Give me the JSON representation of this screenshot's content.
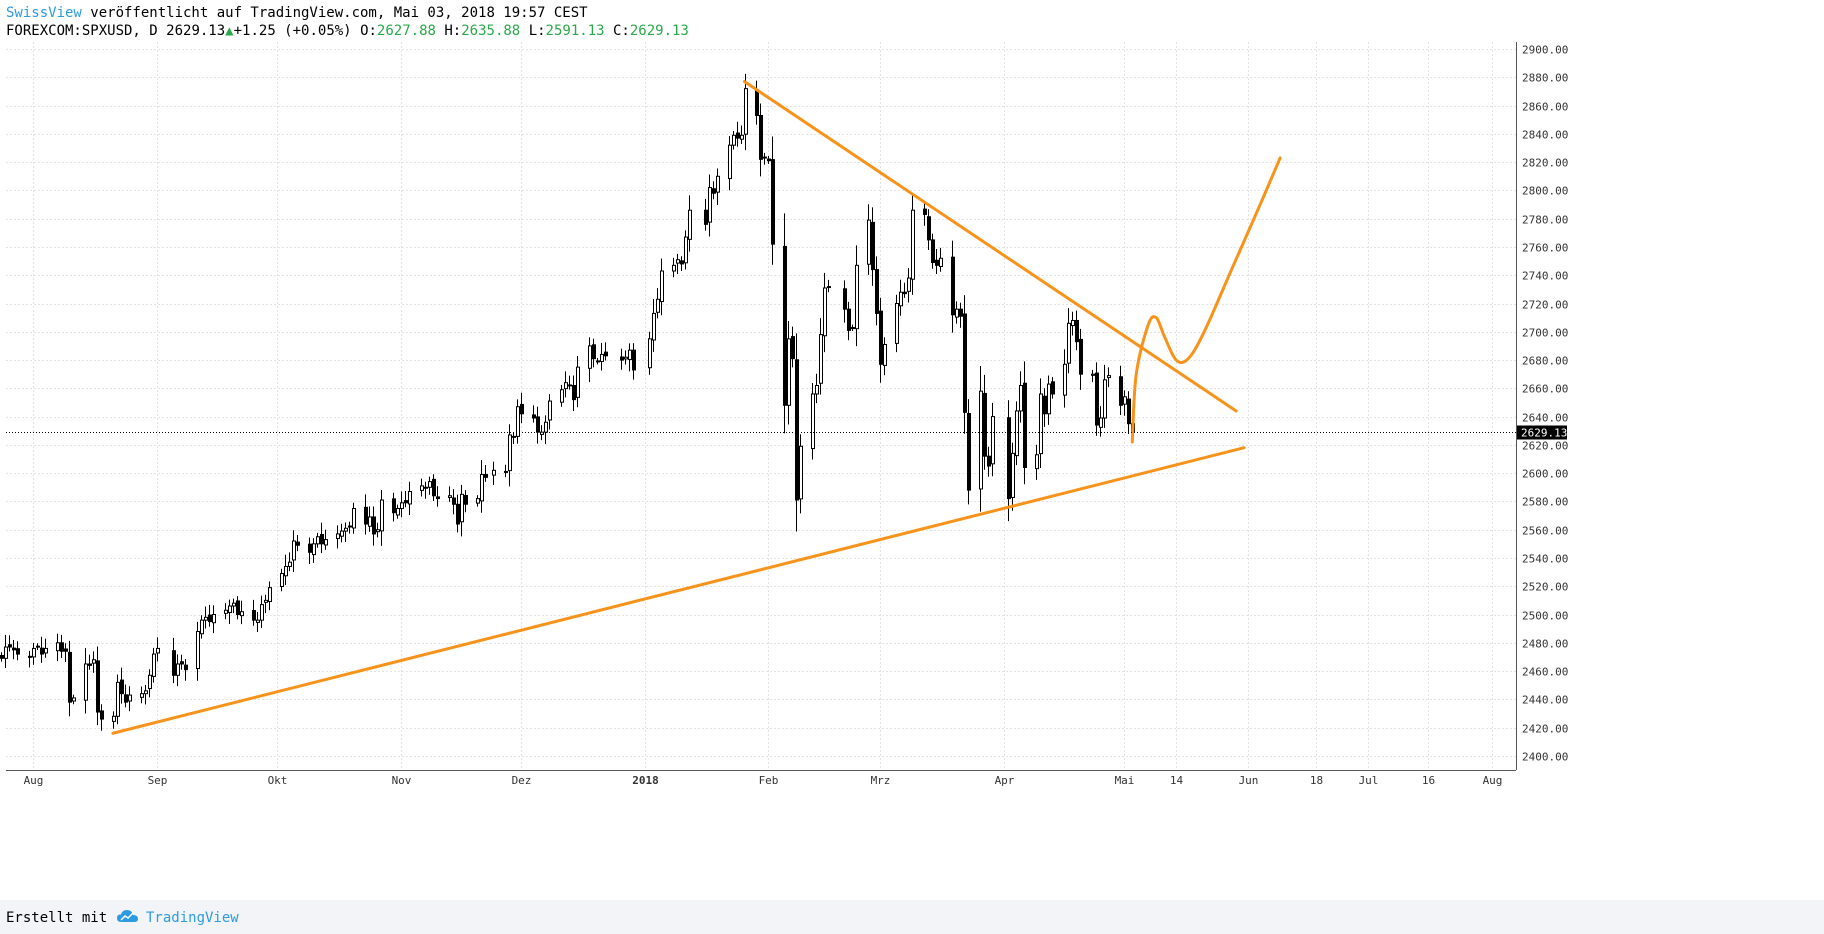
{
  "header": {
    "publisher": "SwissView",
    "published_text": " veröffentlicht auf TradingView.com, Mai 03, 2018 19:57 CEST",
    "symbol": "FOREXCOM:SPXUSD, D",
    "last": "2629.13",
    "change": "+1.25 (+0.05%)",
    "o_label": "O:",
    "o_value": "2627.88",
    "h_label": "H:",
    "h_value": "2635.88",
    "l_label": "L:",
    "l_value": "2591.13",
    "c_label": "C:",
    "c_value": "2629.13"
  },
  "footer": {
    "made_with": "Erstellt mit",
    "brand": "TradingView"
  },
  "chart_data": {
    "type": "candlestick",
    "symbol": "FOREXCOM:SPXUSD",
    "interval": "D",
    "ylim": [
      2390,
      2905
    ],
    "yticks": [
      2400,
      2420,
      2440,
      2460,
      2480,
      2500,
      2520,
      2540,
      2560,
      2580,
      2600,
      2620,
      2640,
      2660,
      2680,
      2700,
      2720,
      2740,
      2760,
      2780,
      2800,
      2820,
      2840,
      2860,
      2880,
      2900
    ],
    "x_axis_labels": [
      {
        "label": "Aug",
        "date": "2017-08-01"
      },
      {
        "label": "Sep",
        "date": "2017-09-01"
      },
      {
        "label": "Okt",
        "date": "2017-10-01"
      },
      {
        "label": "Nov",
        "date": "2017-11-01"
      },
      {
        "label": "Dez",
        "date": "2017-12-01"
      },
      {
        "label": "2018",
        "date": "2018-01-01"
      },
      {
        "label": "Feb",
        "date": "2018-02-01"
      },
      {
        "label": "Mrz",
        "date": "2018-03-01"
      },
      {
        "label": "Apr",
        "date": "2018-04-01"
      },
      {
        "label": "Mai",
        "date": "2018-05-01"
      },
      {
        "label": "14",
        "date": "2018-05-14"
      },
      {
        "label": "Jun",
        "date": "2018-06-01"
      },
      {
        "label": "18",
        "date": "2018-06-18"
      },
      {
        "label": "Jul",
        "date": "2018-07-01"
      },
      {
        "label": "16",
        "date": "2018-07-16"
      },
      {
        "label": "Aug",
        "date": "2018-08-01"
      }
    ],
    "last_price": 2629.13,
    "last_price_label": "2629.13",
    "closes": [
      [
        "2017-07-24",
        2469
      ],
      [
        "2017-07-25",
        2477
      ],
      [
        "2017-07-26",
        2477
      ],
      [
        "2017-07-27",
        2475
      ],
      [
        "2017-07-28",
        2472
      ],
      [
        "2017-07-31",
        2470
      ],
      [
        "2017-08-01",
        2476
      ],
      [
        "2017-08-02",
        2477
      ],
      [
        "2017-08-03",
        2472
      ],
      [
        "2017-08-04",
        2476
      ],
      [
        "2017-08-07",
        2480
      ],
      [
        "2017-08-08",
        2474
      ],
      [
        "2017-08-09",
        2474
      ],
      [
        "2017-08-10",
        2438
      ],
      [
        "2017-08-11",
        2441
      ],
      [
        "2017-08-14",
        2465
      ],
      [
        "2017-08-15",
        2464
      ],
      [
        "2017-08-16",
        2468
      ],
      [
        "2017-08-17",
        2431
      ],
      [
        "2017-08-18",
        2426
      ],
      [
        "2017-08-21",
        2428
      ],
      [
        "2017-08-22",
        2452
      ],
      [
        "2017-08-23",
        2444
      ],
      [
        "2017-08-24",
        2438
      ],
      [
        "2017-08-25",
        2443
      ],
      [
        "2017-08-28",
        2444
      ],
      [
        "2017-08-29",
        2446
      ],
      [
        "2017-08-30",
        2457
      ],
      [
        "2017-08-31",
        2472
      ],
      [
        "2017-09-01",
        2476
      ],
      [
        "2017-09-05",
        2457
      ],
      [
        "2017-09-06",
        2465
      ],
      [
        "2017-09-07",
        2465
      ],
      [
        "2017-09-08",
        2461
      ],
      [
        "2017-09-11",
        2488
      ],
      [
        "2017-09-12",
        2496
      ],
      [
        "2017-09-13",
        2498
      ],
      [
        "2017-09-14",
        2495
      ],
      [
        "2017-09-15",
        2500
      ],
      [
        "2017-09-18",
        2503
      ],
      [
        "2017-09-19",
        2506
      ],
      [
        "2017-09-20",
        2508
      ],
      [
        "2017-09-21",
        2500
      ],
      [
        "2017-09-22",
        2502
      ],
      [
        "2017-09-25",
        2496
      ],
      [
        "2017-09-26",
        2496
      ],
      [
        "2017-09-27",
        2507
      ],
      [
        "2017-09-28",
        2510
      ],
      [
        "2017-09-29",
        2519
      ],
      [
        "2017-10-02",
        2529
      ],
      [
        "2017-10-03",
        2534
      ],
      [
        "2017-10-04",
        2537
      ],
      [
        "2017-10-05",
        2552
      ],
      [
        "2017-10-06",
        2549
      ],
      [
        "2017-10-09",
        2544
      ],
      [
        "2017-10-10",
        2550
      ],
      [
        "2017-10-11",
        2555
      ],
      [
        "2017-10-12",
        2550
      ],
      [
        "2017-10-13",
        2553
      ],
      [
        "2017-10-16",
        2557
      ],
      [
        "2017-10-17",
        2559
      ],
      [
        "2017-10-18",
        2561
      ],
      [
        "2017-10-19",
        2562
      ],
      [
        "2017-10-20",
        2575
      ],
      [
        "2017-10-23",
        2564
      ],
      [
        "2017-10-24",
        2569
      ],
      [
        "2017-10-25",
        2557
      ],
      [
        "2017-10-26",
        2560
      ],
      [
        "2017-10-27",
        2581
      ],
      [
        "2017-10-30",
        2572
      ],
      [
        "2017-10-31",
        2575
      ],
      [
        "2017-11-01",
        2579
      ],
      [
        "2017-11-02",
        2579
      ],
      [
        "2017-11-03",
        2587
      ],
      [
        "2017-11-06",
        2591
      ],
      [
        "2017-11-07",
        2590
      ],
      [
        "2017-11-08",
        2594
      ],
      [
        "2017-11-09",
        2584
      ],
      [
        "2017-11-10",
        2582
      ],
      [
        "2017-11-13",
        2584
      ],
      [
        "2017-11-14",
        2578
      ],
      [
        "2017-11-15",
        2564
      ],
      [
        "2017-11-16",
        2585
      ],
      [
        "2017-11-17",
        2578
      ],
      [
        "2017-11-20",
        2582
      ],
      [
        "2017-11-21",
        2599
      ],
      [
        "2017-11-22",
        2597
      ],
      [
        "2017-11-24",
        2602
      ],
      [
        "2017-11-27",
        2601
      ],
      [
        "2017-11-28",
        2627
      ],
      [
        "2017-11-29",
        2626
      ],
      [
        "2017-11-30",
        2647
      ],
      [
        "2017-12-01",
        2642
      ],
      [
        "2017-12-04",
        2639
      ],
      [
        "2017-12-05",
        2629
      ],
      [
        "2017-12-06",
        2629
      ],
      [
        "2017-12-07",
        2636
      ],
      [
        "2017-12-08",
        2651
      ],
      [
        "2017-12-11",
        2659
      ],
      [
        "2017-12-12",
        2664
      ],
      [
        "2017-12-13",
        2662
      ],
      [
        "2017-12-14",
        2652
      ],
      [
        "2017-12-15",
        2675
      ],
      [
        "2017-12-18",
        2690
      ],
      [
        "2017-12-19",
        2681
      ],
      [
        "2017-12-20",
        2679
      ],
      [
        "2017-12-21",
        2684
      ],
      [
        "2017-12-22",
        2683
      ],
      [
        "2017-12-26",
        2680
      ],
      [
        "2017-12-27",
        2682
      ],
      [
        "2017-12-28",
        2687
      ],
      [
        "2017-12-29",
        2673
      ],
      [
        "2018-01-02",
        2695
      ],
      [
        "2018-01-03",
        2713
      ],
      [
        "2018-01-04",
        2723
      ],
      [
        "2018-01-05",
        2743
      ],
      [
        "2018-01-08",
        2747
      ],
      [
        "2018-01-09",
        2751
      ],
      [
        "2018-01-10",
        2748
      ],
      [
        "2018-01-11",
        2767
      ],
      [
        "2018-01-12",
        2786
      ],
      [
        "2018-01-16",
        2776
      ],
      [
        "2018-01-17",
        2802
      ],
      [
        "2018-01-18",
        2798
      ],
      [
        "2018-01-19",
        2810
      ],
      [
        "2018-01-22",
        2832
      ],
      [
        "2018-01-23",
        2839
      ],
      [
        "2018-01-24",
        2837
      ],
      [
        "2018-01-25",
        2839
      ],
      [
        "2018-01-26",
        2872
      ],
      [
        "2018-01-29",
        2853
      ],
      [
        "2018-01-30",
        2822
      ],
      [
        "2018-01-31",
        2823
      ],
      [
        "2018-02-01",
        2821
      ],
      [
        "2018-02-02",
        2762
      ],
      [
        "2018-02-05",
        2648
      ],
      [
        "2018-02-06",
        2695
      ],
      [
        "2018-02-07",
        2681
      ],
      [
        "2018-02-08",
        2581
      ],
      [
        "2018-02-09",
        2619
      ],
      [
        "2018-02-12",
        2656
      ],
      [
        "2018-02-13",
        2662
      ],
      [
        "2018-02-14",
        2698
      ],
      [
        "2018-02-15",
        2731
      ],
      [
        "2018-02-16",
        2732
      ],
      [
        "2018-02-20",
        2716
      ],
      [
        "2018-02-21",
        2701
      ],
      [
        "2018-02-22",
        2703
      ],
      [
        "2018-02-23",
        2747
      ],
      [
        "2018-02-26",
        2779
      ],
      [
        "2018-02-27",
        2744
      ],
      [
        "2018-02-28",
        2713
      ],
      [
        "2018-03-01",
        2677
      ],
      [
        "2018-03-02",
        2691
      ],
      [
        "2018-03-05",
        2720
      ],
      [
        "2018-03-06",
        2728
      ],
      [
        "2018-03-07",
        2727
      ],
      [
        "2018-03-08",
        2738
      ],
      [
        "2018-03-09",
        2786
      ],
      [
        "2018-03-12",
        2783
      ],
      [
        "2018-03-13",
        2765
      ],
      [
        "2018-03-14",
        2749
      ],
      [
        "2018-03-15",
        2747
      ],
      [
        "2018-03-16",
        2752
      ],
      [
        "2018-03-19",
        2712
      ],
      [
        "2018-03-20",
        2716
      ],
      [
        "2018-03-21",
        2711
      ],
      [
        "2018-03-22",
        2643
      ],
      [
        "2018-03-23",
        2588
      ],
      [
        "2018-03-26",
        2658
      ],
      [
        "2018-03-27",
        2612
      ],
      [
        "2018-03-28",
        2605
      ],
      [
        "2018-03-29",
        2640
      ],
      [
        "2018-04-02",
        2582
      ],
      [
        "2018-04-03",
        2614
      ],
      [
        "2018-04-04",
        2644
      ],
      [
        "2018-04-05",
        2662
      ],
      [
        "2018-04-06",
        2604
      ],
      [
        "2018-04-09",
        2613
      ],
      [
        "2018-04-10",
        2656
      ],
      [
        "2018-04-11",
        2642
      ],
      [
        "2018-04-12",
        2663
      ],
      [
        "2018-04-13",
        2656
      ],
      [
        "2018-04-16",
        2677
      ],
      [
        "2018-04-17",
        2706
      ],
      [
        "2018-04-18",
        2708
      ],
      [
        "2018-04-19",
        2693
      ],
      [
        "2018-04-20",
        2670
      ],
      [
        "2018-04-23",
        2670
      ],
      [
        "2018-04-24",
        2634
      ],
      [
        "2018-04-25",
        2639
      ],
      [
        "2018-04-26",
        2666
      ],
      [
        "2018-04-27",
        2669
      ],
      [
        "2018-04-30",
        2648
      ],
      [
        "2018-05-01",
        2654
      ],
      [
        "2018-05-02",
        2635
      ],
      [
        "2018-05-03",
        2629.13
      ]
    ],
    "drawings": [
      {
        "type": "trendline",
        "name": "support",
        "color": "#f7931a",
        "from": [
          "2017-08-21",
          2416
        ],
        "to": [
          "2018-05-31",
          2618
        ]
      },
      {
        "type": "trendline",
        "name": "resistance",
        "color": "#f7931a",
        "from": [
          "2018-01-26",
          2877
        ],
        "to": [
          "2018-05-29",
          2644
        ]
      },
      {
        "type": "projection-curve",
        "color": "#f7931a",
        "points": [
          [
            "2018-05-03",
            2622
          ],
          [
            "2018-05-04",
            2670
          ],
          [
            "2018-05-07",
            2705
          ],
          [
            "2018-05-09",
            2710
          ],
          [
            "2018-05-11",
            2697
          ],
          [
            "2018-05-14",
            2680
          ],
          [
            "2018-05-17",
            2681
          ],
          [
            "2018-05-21",
            2700
          ],
          [
            "2018-05-28",
            2745
          ],
          [
            "2018-06-04",
            2790
          ],
          [
            "2018-06-09",
            2823
          ]
        ]
      }
    ]
  }
}
